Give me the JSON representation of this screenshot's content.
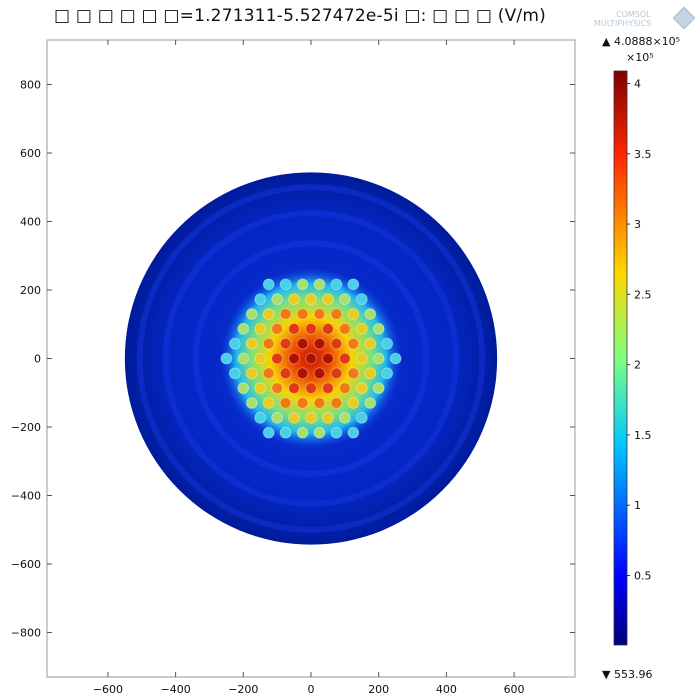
{
  "title": "□ □ □ □ □ □=1.271311-5.527472e-5i  □: □ □ □ (V/m)",
  "logo": {
    "line1": "COMSOL",
    "line2": "MULTIPHYSICS"
  },
  "colorbar": {
    "max_label": "▲ 4.0888×10⁵",
    "min_label": "▼ 553.96",
    "multiplier": "×10⁵",
    "ticks": [
      "0.5",
      "1",
      "1.5",
      "2",
      "2.5",
      "3",
      "3.5",
      "4"
    ],
    "tick_values": [
      0.5,
      1,
      1.5,
      2,
      2.5,
      3,
      3.5,
      4
    ],
    "max": 4.0888,
    "min": 0.0055396
  },
  "chart_data": {
    "type": "heatmap",
    "xlim": [
      -780,
      780
    ],
    "ylim": [
      -930,
      930
    ],
    "x_ticks": [
      -600,
      -400,
      -200,
      0,
      200,
      400,
      600
    ],
    "y_ticks": [
      -800,
      -600,
      -400,
      -200,
      0,
      200,
      400,
      600,
      800
    ],
    "x_tick_labels": [
      "−600",
      "−400",
      "−200",
      "0",
      "200",
      "400",
      "600"
    ],
    "y_tick_labels": [
      "−800",
      "−600",
      "−400",
      "−200",
      "0",
      "200",
      "400",
      "600",
      "800"
    ],
    "domain_circle": {
      "center": [
        0,
        0
      ],
      "radius": 550
    },
    "colormap": "jet",
    "value_range": [
      553.96,
      408880
    ],
    "grid": false
  }
}
